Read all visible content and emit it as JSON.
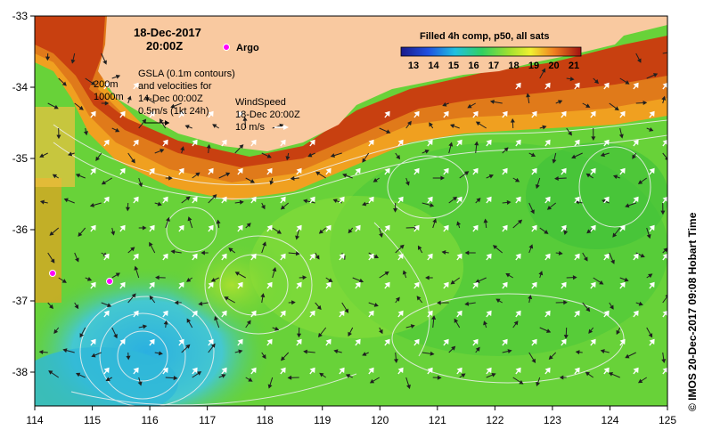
{
  "header": {
    "date": "18-Dec-2017",
    "time": "20:00Z"
  },
  "argo": {
    "label": "Argo",
    "color": "#ff00ff"
  },
  "gsla_note": [
    "GSLA (0.1m contours)",
    "and velocities for",
    "14-Dec 00:00Z",
    "0.5m/s (1kt 24h)"
  ],
  "depth_labels": [
    "200m",
    "1000m"
  ],
  "wind": {
    "title": "WindSpeed",
    "time": "18-Dec 20:00Z",
    "scale": "10 m/s"
  },
  "colorbar": {
    "title": "Filled 4h comp, p50, all sats",
    "ticks": [
      "13",
      "14",
      "15",
      "16",
      "17",
      "18",
      "19",
      "20",
      "21"
    ]
  },
  "axes": {
    "lon_ticks": [
      "114",
      "115",
      "116",
      "117",
      "118",
      "119",
      "120",
      "121",
      "122",
      "123",
      "124",
      "125"
    ],
    "lat_ticks": [
      "-33",
      "-34",
      "-35",
      "-36",
      "-37",
      "-38"
    ]
  },
  "credit": "© IMOS 20-Dec-2017 09:08 Hobart Time",
  "colors": {
    "land": "#f9c9a0",
    "coast_warm": "#e07a1a",
    "shelf_hot": "#c02a10",
    "mid": "#5ed03a",
    "cool": "#2ab0e0",
    "contour": "#f0f0f0"
  }
}
